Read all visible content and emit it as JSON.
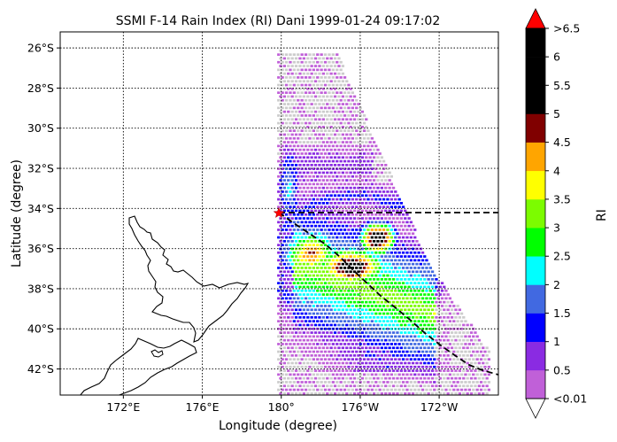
{
  "title": "SSMI F-14 Rain Index (RI) Dani 1999-01-24 09:17:02",
  "xlabel": "Longitude (degree)",
  "ylabel": "Latitude (degree)",
  "colorbar": {
    "label": "RI",
    "levels": [
      "<0.01",
      "0.5",
      "1",
      "1.5",
      "2",
      "2.5",
      "3",
      "3.5",
      "4",
      "4.5",
      "5",
      "5.5",
      "6",
      ">6.5"
    ],
    "colors": [
      "#c060d8",
      "#8a2be2",
      "#0000ff",
      "#4169e1",
      "#00ffff",
      "#00ff00",
      "#7cfc00",
      "#ffff00",
      "#ffa500",
      "#800000",
      "#000000",
      "#000000",
      "#000000"
    ],
    "over_color": "#ff0000",
    "under_color": "#ffffff"
  },
  "map": {
    "lat_range": [
      -43.3,
      -25.2
    ],
    "lon_range_east_deg": [
      168.8,
      191.0
    ],
    "lat_ticks": [
      {
        "lat": -26,
        "label": "26°S"
      },
      {
        "lat": -28,
        "label": "28°S"
      },
      {
        "lat": -30,
        "label": "30°S"
      },
      {
        "lat": -32,
        "label": "32°S"
      },
      {
        "lat": -34,
        "label": "34°S"
      },
      {
        "lat": -36,
        "label": "36°S"
      },
      {
        "lat": -38,
        "label": "38°S"
      },
      {
        "lat": -40,
        "label": "40°S"
      },
      {
        "lat": -42,
        "label": "42°S"
      }
    ],
    "lon_ticks": [
      {
        "lon": 172,
        "label": "172°E"
      },
      {
        "lon": 176,
        "label": "176°E"
      },
      {
        "lon": 180,
        "label": "180°"
      },
      {
        "lon": 184,
        "label": "176°W"
      },
      {
        "lon": 188,
        "label": "172°W"
      }
    ],
    "grid": "dotted",
    "storm_center": {
      "lat": -34.2,
      "lon": 180.0
    },
    "swath_no_rain_color": "#cccccc"
  }
}
